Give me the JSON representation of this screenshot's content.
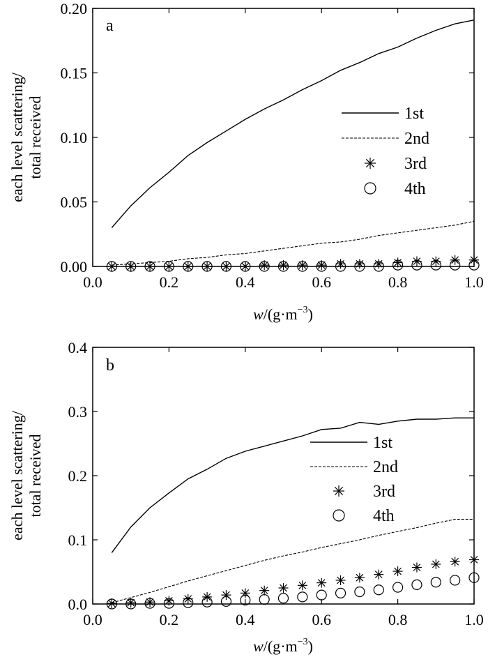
{
  "chart_data": [
    {
      "type": "line",
      "panel_label": "a",
      "xlabel_var": "w",
      "xlabel_rest": "/(g·m",
      "xlabel_sup": "−3",
      "xlabel_close": ")",
      "ylabel_line1": "each level scattering/",
      "ylabel_line2": "total received",
      "xlim": [
        0.0,
        1.0
      ],
      "ylim": [
        0.0,
        0.2
      ],
      "xticks": [
        "0.0",
        "0.2",
        "0.4",
        "0.6",
        "0.8",
        "1.0"
      ],
      "yticks": [
        "0.00",
        "0.05",
        "0.10",
        "0.15",
        "0.20"
      ],
      "legend_position": "right",
      "series": [
        {
          "name": "1st",
          "style": "solid",
          "x": [
            0.05,
            0.1,
            0.15,
            0.2,
            0.25,
            0.3,
            0.35,
            0.4,
            0.45,
            0.5,
            0.55,
            0.6,
            0.65,
            0.7,
            0.75,
            0.8,
            0.85,
            0.9,
            0.95,
            1.0
          ],
          "y": [
            0.03,
            0.047,
            0.061,
            0.073,
            0.086,
            0.096,
            0.105,
            0.114,
            0.122,
            0.129,
            0.137,
            0.144,
            0.152,
            0.158,
            0.165,
            0.17,
            0.177,
            0.183,
            0.188,
            0.191
          ]
        },
        {
          "name": "2nd",
          "style": "dashed",
          "x": [
            0.05,
            0.1,
            0.15,
            0.2,
            0.25,
            0.3,
            0.35,
            0.4,
            0.45,
            0.5,
            0.55,
            0.6,
            0.65,
            0.7,
            0.75,
            0.8,
            0.85,
            0.9,
            0.95,
            1.0
          ],
          "y": [
            0.001,
            0.002,
            0.003,
            0.004,
            0.006,
            0.007,
            0.009,
            0.01,
            0.012,
            0.014,
            0.016,
            0.018,
            0.019,
            0.021,
            0.024,
            0.026,
            0.028,
            0.03,
            0.032,
            0.035
          ]
        },
        {
          "name": "3rd",
          "style": "star",
          "x": [
            0.05,
            0.1,
            0.15,
            0.2,
            0.25,
            0.3,
            0.35,
            0.4,
            0.45,
            0.5,
            0.55,
            0.6,
            0.65,
            0.7,
            0.75,
            0.8,
            0.85,
            0.9,
            0.95,
            1.0
          ],
          "y": [
            0.0,
            0.0,
            0.0,
            0.0,
            0.0,
            0.0,
            0.0,
            0.0,
            0.001,
            0.001,
            0.001,
            0.001,
            0.002,
            0.002,
            0.002,
            0.003,
            0.004,
            0.004,
            0.005,
            0.005
          ]
        },
        {
          "name": "4th",
          "style": "circle",
          "x": [
            0.05,
            0.1,
            0.15,
            0.2,
            0.25,
            0.3,
            0.35,
            0.4,
            0.45,
            0.5,
            0.55,
            0.6,
            0.65,
            0.7,
            0.75,
            0.8,
            0.85,
            0.9,
            0.95,
            1.0
          ],
          "y": [
            0.0,
            0.0,
            0.0,
            0.0,
            0.0,
            0.0,
            0.0,
            0.0,
            0.0,
            0.0,
            0.0,
            0.0,
            0.0,
            0.0,
            0.0,
            0.001,
            0.001,
            0.001,
            0.001,
            0.001
          ]
        }
      ]
    },
    {
      "type": "line",
      "panel_label": "b",
      "xlabel_var": "w",
      "xlabel_rest": "/(g·m",
      "xlabel_sup": "−3",
      "xlabel_close": ")",
      "ylabel_line1": "each level scattering/",
      "ylabel_line2": "total received",
      "xlim": [
        0.0,
        1.0
      ],
      "ylim": [
        0.0,
        0.4
      ],
      "xticks": [
        "0.0",
        "0.2",
        "0.4",
        "0.6",
        "0.8",
        "1.0"
      ],
      "yticks": [
        "0.0",
        "0.1",
        "0.2",
        "0.3",
        "0.4"
      ],
      "legend_position": "right",
      "series": [
        {
          "name": "1st",
          "style": "solid",
          "x": [
            0.05,
            0.1,
            0.15,
            0.2,
            0.25,
            0.3,
            0.35,
            0.4,
            0.45,
            0.5,
            0.55,
            0.6,
            0.65,
            0.7,
            0.75,
            0.8,
            0.85,
            0.9,
            0.95,
            1.0
          ],
          "y": [
            0.08,
            0.12,
            0.15,
            0.173,
            0.195,
            0.21,
            0.227,
            0.238,
            0.246,
            0.254,
            0.262,
            0.272,
            0.274,
            0.283,
            0.28,
            0.285,
            0.288,
            0.288,
            0.29,
            0.29
          ]
        },
        {
          "name": "2nd",
          "style": "dashed",
          "x": [
            0.05,
            0.1,
            0.15,
            0.2,
            0.25,
            0.3,
            0.35,
            0.4,
            0.45,
            0.5,
            0.55,
            0.6,
            0.65,
            0.7,
            0.75,
            0.8,
            0.85,
            0.9,
            0.95,
            1.0
          ],
          "y": [
            0.002,
            0.01,
            0.018,
            0.027,
            0.036,
            0.044,
            0.052,
            0.06,
            0.068,
            0.075,
            0.081,
            0.088,
            0.094,
            0.1,
            0.107,
            0.113,
            0.119,
            0.126,
            0.132,
            0.132
          ]
        },
        {
          "name": "3rd",
          "style": "star",
          "x": [
            0.05,
            0.1,
            0.15,
            0.2,
            0.25,
            0.3,
            0.35,
            0.4,
            0.45,
            0.5,
            0.55,
            0.6,
            0.65,
            0.7,
            0.75,
            0.8,
            0.85,
            0.9,
            0.95,
            1.0
          ],
          "y": [
            0.001,
            0.002,
            0.003,
            0.005,
            0.008,
            0.011,
            0.014,
            0.017,
            0.021,
            0.025,
            0.029,
            0.033,
            0.037,
            0.041,
            0.046,
            0.051,
            0.057,
            0.062,
            0.066,
            0.069
          ]
        },
        {
          "name": "4th",
          "style": "circle",
          "x": [
            0.05,
            0.1,
            0.15,
            0.2,
            0.25,
            0.3,
            0.35,
            0.4,
            0.45,
            0.5,
            0.55,
            0.6,
            0.65,
            0.7,
            0.75,
            0.8,
            0.85,
            0.9,
            0.95,
            1.0
          ],
          "y": [
            0.0,
            0.0,
            0.001,
            0.001,
            0.002,
            0.003,
            0.004,
            0.006,
            0.007,
            0.009,
            0.011,
            0.014,
            0.017,
            0.019,
            0.022,
            0.026,
            0.03,
            0.034,
            0.037,
            0.041
          ]
        }
      ]
    }
  ]
}
